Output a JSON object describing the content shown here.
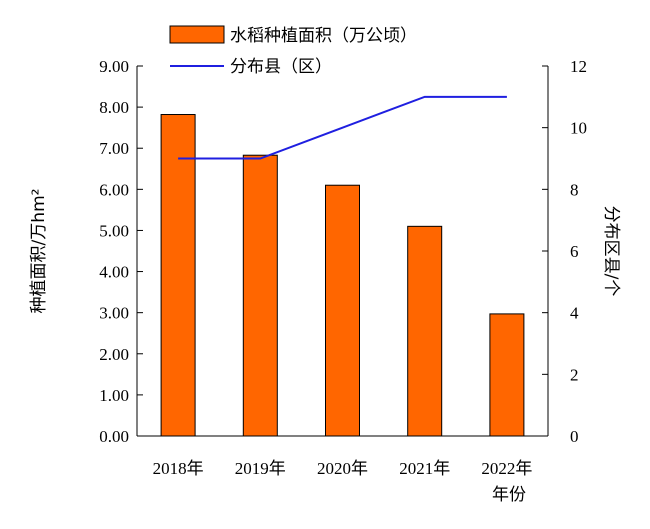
{
  "chart_data": {
    "type": "bar",
    "categories": [
      "2018年",
      "2019年",
      "2020年",
      "2021年",
      "2022年"
    ],
    "xlabel": "年份",
    "series": [
      {
        "name": "水稻种植面积（万公顷）",
        "type": "bar",
        "axis": "left",
        "values": [
          7.82,
          6.83,
          6.1,
          5.1,
          2.97
        ]
      },
      {
        "name": "分布县（区）",
        "type": "line",
        "axis": "right",
        "values": [
          9,
          9,
          10,
          11,
          11
        ]
      }
    ],
    "ylabel_left": "种植面积/万hm²",
    "ylabel_right": "分布区县/个",
    "ylim_left": [
      0,
      9
    ],
    "ylim_right": [
      0,
      12
    ],
    "yticks_left": [
      "0.00",
      "1.00",
      "2.00",
      "3.00",
      "4.00",
      "5.00",
      "6.00",
      "7.00",
      "8.00",
      "9.00"
    ],
    "yticks_right": [
      "0",
      "2",
      "4",
      "6",
      "8",
      "10",
      "12"
    ],
    "grid": false,
    "legend_position": "top",
    "colors": {
      "bar": "#FF6600",
      "bar_edge": "#000000",
      "line": "#1F1FE0"
    }
  }
}
